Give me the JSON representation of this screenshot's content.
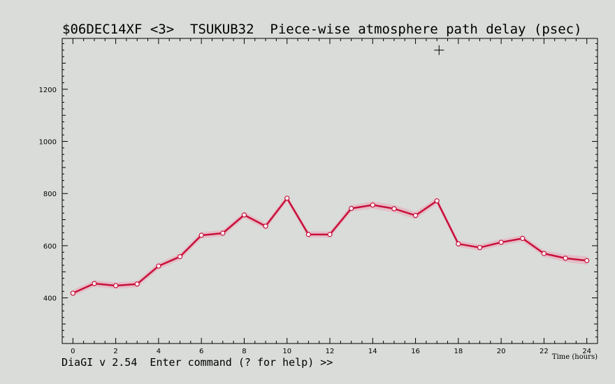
{
  "title": "$06DEC14XF <3>  TSUKUB32  Piece-wise atmosphere path delay (psec)",
  "command_prompt": "DiaGI v 2.54  Enter command (? for help) >>",
  "colors": {
    "background": "#d9dcd9",
    "line": "#c8103a",
    "error_band": "#e6b4c0",
    "marker_fill": "#ffffff",
    "axes": "#000000"
  },
  "chart_data": {
    "type": "line",
    "title": "$06DEC14XF <3>  TSUKUB32  Piece-wise atmosphere path delay (psec)",
    "xlabel": "Time (hours)",
    "ylabel": "",
    "xlim": [
      -0.5,
      24.5
    ],
    "ylim": [
      225,
      1395
    ],
    "xticks": [
      0,
      2,
      4,
      6,
      8,
      10,
      12,
      14,
      16,
      18,
      20,
      22,
      24
    ],
    "yticks": [
      400,
      600,
      800,
      1000,
      1200
    ],
    "grid": false,
    "cursor": {
      "x": 17.1,
      "y": 1350
    },
    "series": [
      {
        "x": [
          0,
          1,
          2,
          3,
          4,
          5,
          6,
          7,
          8,
          9,
          10,
          11,
          12,
          13,
          14,
          15,
          16,
          17,
          18,
          19,
          20,
          21,
          22,
          23,
          24
        ],
        "values": [
          418,
          455,
          447,
          453,
          522,
          558,
          640,
          648,
          718,
          675,
          782,
          643,
          643,
          743,
          756,
          742,
          716,
          772,
          607,
          593,
          613,
          628,
          570,
          552,
          543
        ],
        "errors": [
          12,
          12,
          12,
          12,
          12,
          12,
          12,
          12,
          12,
          12,
          12,
          12,
          12,
          12,
          14,
          14,
          14,
          12,
          12,
          12,
          12,
          12,
          12,
          14,
          16
        ]
      }
    ]
  }
}
